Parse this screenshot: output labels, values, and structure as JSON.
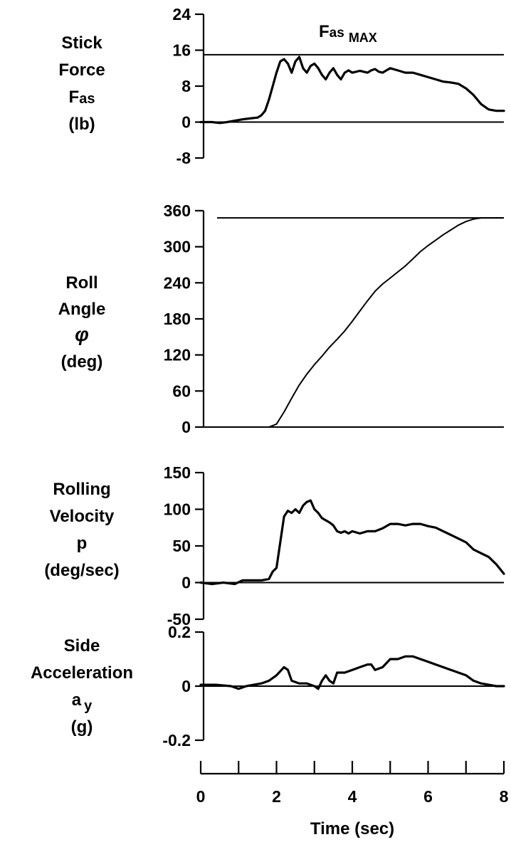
{
  "chart_data": [
    {
      "type": "line",
      "ylabel_lines": [
        "Stick",
        "Force",
        "F",
        "(lb)"
      ],
      "ylabel_sub": "as",
      "yticks": [
        24,
        16,
        8,
        0,
        -8
      ],
      "ylim": [
        -8,
        24
      ],
      "xlim": [
        0,
        8
      ],
      "reference_line": 15,
      "annotation": {
        "main": "F",
        "sub": "as",
        "suffix": "MAX"
      },
      "series": [
        {
          "x": [
            0,
            0.3,
            0.5,
            0.7,
            0.9,
            1.1,
            1.3,
            1.5,
            1.6,
            1.7,
            1.8,
            1.9,
            2.0,
            2.1,
            2.2,
            2.3,
            2.4,
            2.5,
            2.6,
            2.7,
            2.8,
            2.9,
            3.0,
            3.1,
            3.2,
            3.3,
            3.4,
            3.5,
            3.6,
            3.7,
            3.8,
            3.9,
            4.0,
            4.1,
            4.2,
            4.3,
            4.4,
            4.5,
            4.6,
            4.7,
            4.8,
            4.9,
            5.0,
            5.2,
            5.4,
            5.6,
            5.8,
            6.0,
            6.2,
            6.4,
            6.6,
            6.8,
            7.0,
            7.2,
            7.4,
            7.6,
            7.8,
            8.0
          ],
          "y": [
            0,
            0,
            -0.2,
            0,
            0.3,
            0.6,
            0.8,
            1,
            1.5,
            2.5,
            5,
            8,
            11,
            13.5,
            14,
            13,
            11,
            13.5,
            14.5,
            12,
            11,
            12.5,
            13,
            12,
            10.5,
            9.5,
            11,
            12,
            10.5,
            9.5,
            11,
            11.5,
            11,
            11.2,
            11.4,
            11.2,
            11,
            11.5,
            11.8,
            11.2,
            11,
            11.5,
            12,
            11.5,
            11,
            11,
            10.5,
            10,
            9.5,
            9,
            8.8,
            8.5,
            7.5,
            6,
            4,
            2.8,
            2.5,
            2.5
          ]
        }
      ]
    },
    {
      "type": "line",
      "ylabel_lines": [
        "Roll",
        "Angle",
        "φ",
        "(deg)"
      ],
      "yticks": [
        360,
        300,
        240,
        180,
        120,
        60,
        0
      ],
      "ylim": [
        0,
        360
      ],
      "xlim": [
        0,
        8
      ],
      "reference_line": 348,
      "series": [
        {
          "x": [
            0,
            0.5,
            1.0,
            1.5,
            1.8,
            2.0,
            2.2,
            2.4,
            2.6,
            2.8,
            3.0,
            3.2,
            3.4,
            3.6,
            3.8,
            4.0,
            4.2,
            4.4,
            4.6,
            4.8,
            5.0,
            5.2,
            5.4,
            5.6,
            5.8,
            6.0,
            6.2,
            6.4,
            6.6,
            6.8,
            7.0,
            7.2,
            7.4,
            7.6,
            7.8,
            8.0
          ],
          "y": [
            -2,
            -2,
            -3,
            -2,
            0,
            5,
            25,
            48,
            70,
            88,
            104,
            118,
            133,
            146,
            160,
            176,
            193,
            210,
            226,
            238,
            248,
            258,
            268,
            280,
            292,
            302,
            311,
            320,
            328,
            336,
            342,
            346,
            348,
            348,
            348,
            348
          ]
        }
      ]
    },
    {
      "type": "line",
      "ylabel_lines": [
        "Rolling",
        "Velocity",
        "p",
        "(deg/sec)"
      ],
      "yticks": [
        150,
        100,
        50,
        0,
        -50
      ],
      "ylim": [
        -50,
        150
      ],
      "xlim": [
        0,
        8
      ],
      "series": [
        {
          "x": [
            0,
            0.3,
            0.6,
            0.9,
            1.1,
            1.3,
            1.6,
            1.8,
            1.9,
            2.0,
            2.1,
            2.2,
            2.3,
            2.4,
            2.5,
            2.6,
            2.7,
            2.8,
            2.9,
            3.0,
            3.1,
            3.2,
            3.3,
            3.4,
            3.5,
            3.6,
            3.7,
            3.8,
            3.9,
            4.0,
            4.2,
            4.4,
            4.6,
            4.8,
            5.0,
            5.2,
            5.4,
            5.6,
            5.8,
            6.0,
            6.2,
            6.4,
            6.6,
            6.8,
            7.0,
            7.2,
            7.4,
            7.6,
            7.8,
            8.0
          ],
          "y": [
            0,
            -2,
            0,
            -2,
            3,
            3,
            3,
            5,
            15,
            20,
            55,
            90,
            98,
            95,
            100,
            95,
            105,
            110,
            112,
            100,
            95,
            88,
            85,
            82,
            78,
            70,
            68,
            70,
            67,
            70,
            67,
            70,
            70,
            74,
            80,
            80,
            78,
            80,
            80,
            77,
            75,
            70,
            65,
            60,
            55,
            45,
            40,
            35,
            25,
            12
          ]
        }
      ]
    },
    {
      "type": "line",
      "ylabel_lines": [
        "Side",
        "Acceleration",
        "a",
        "(g)"
      ],
      "ylabel_sub": "y",
      "yticks": [
        0.2,
        0,
        -0.2
      ],
      "ylim": [
        -0.2,
        0.2
      ],
      "xlim": [
        0,
        8
      ],
      "series": [
        {
          "x": [
            0,
            0.4,
            0.8,
            1.0,
            1.2,
            1.4,
            1.6,
            1.8,
            2.0,
            2.2,
            2.3,
            2.4,
            2.6,
            2.8,
            3.0,
            3.1,
            3.2,
            3.3,
            3.4,
            3.5,
            3.6,
            3.8,
            4.0,
            4.2,
            4.4,
            4.5,
            4.6,
            4.8,
            5.0,
            5.2,
            5.4,
            5.6,
            5.8,
            6.0,
            6.2,
            6.4,
            6.6,
            6.8,
            7.0,
            7.2,
            7.4,
            7.6,
            7.8,
            8.0
          ],
          "y": [
            0.005,
            0.005,
            0.0,
            -0.01,
            0.0,
            0.005,
            0.01,
            0.02,
            0.04,
            0.07,
            0.06,
            0.02,
            0.01,
            0.01,
            0.0,
            -0.01,
            0.02,
            0.04,
            0.02,
            0.01,
            0.05,
            0.05,
            0.06,
            0.07,
            0.08,
            0.08,
            0.06,
            0.07,
            0.1,
            0.1,
            0.11,
            0.11,
            0.1,
            0.09,
            0.08,
            0.07,
            0.06,
            0.05,
            0.04,
            0.02,
            0.01,
            0.005,
            0.0,
            0.0
          ]
        }
      ]
    },
    {
      "type": "axis",
      "xticks": [
        0,
        2,
        4,
        6,
        8
      ],
      "xlim": [
        0,
        8
      ],
      "xlabel": "Time (sec)"
    }
  ]
}
